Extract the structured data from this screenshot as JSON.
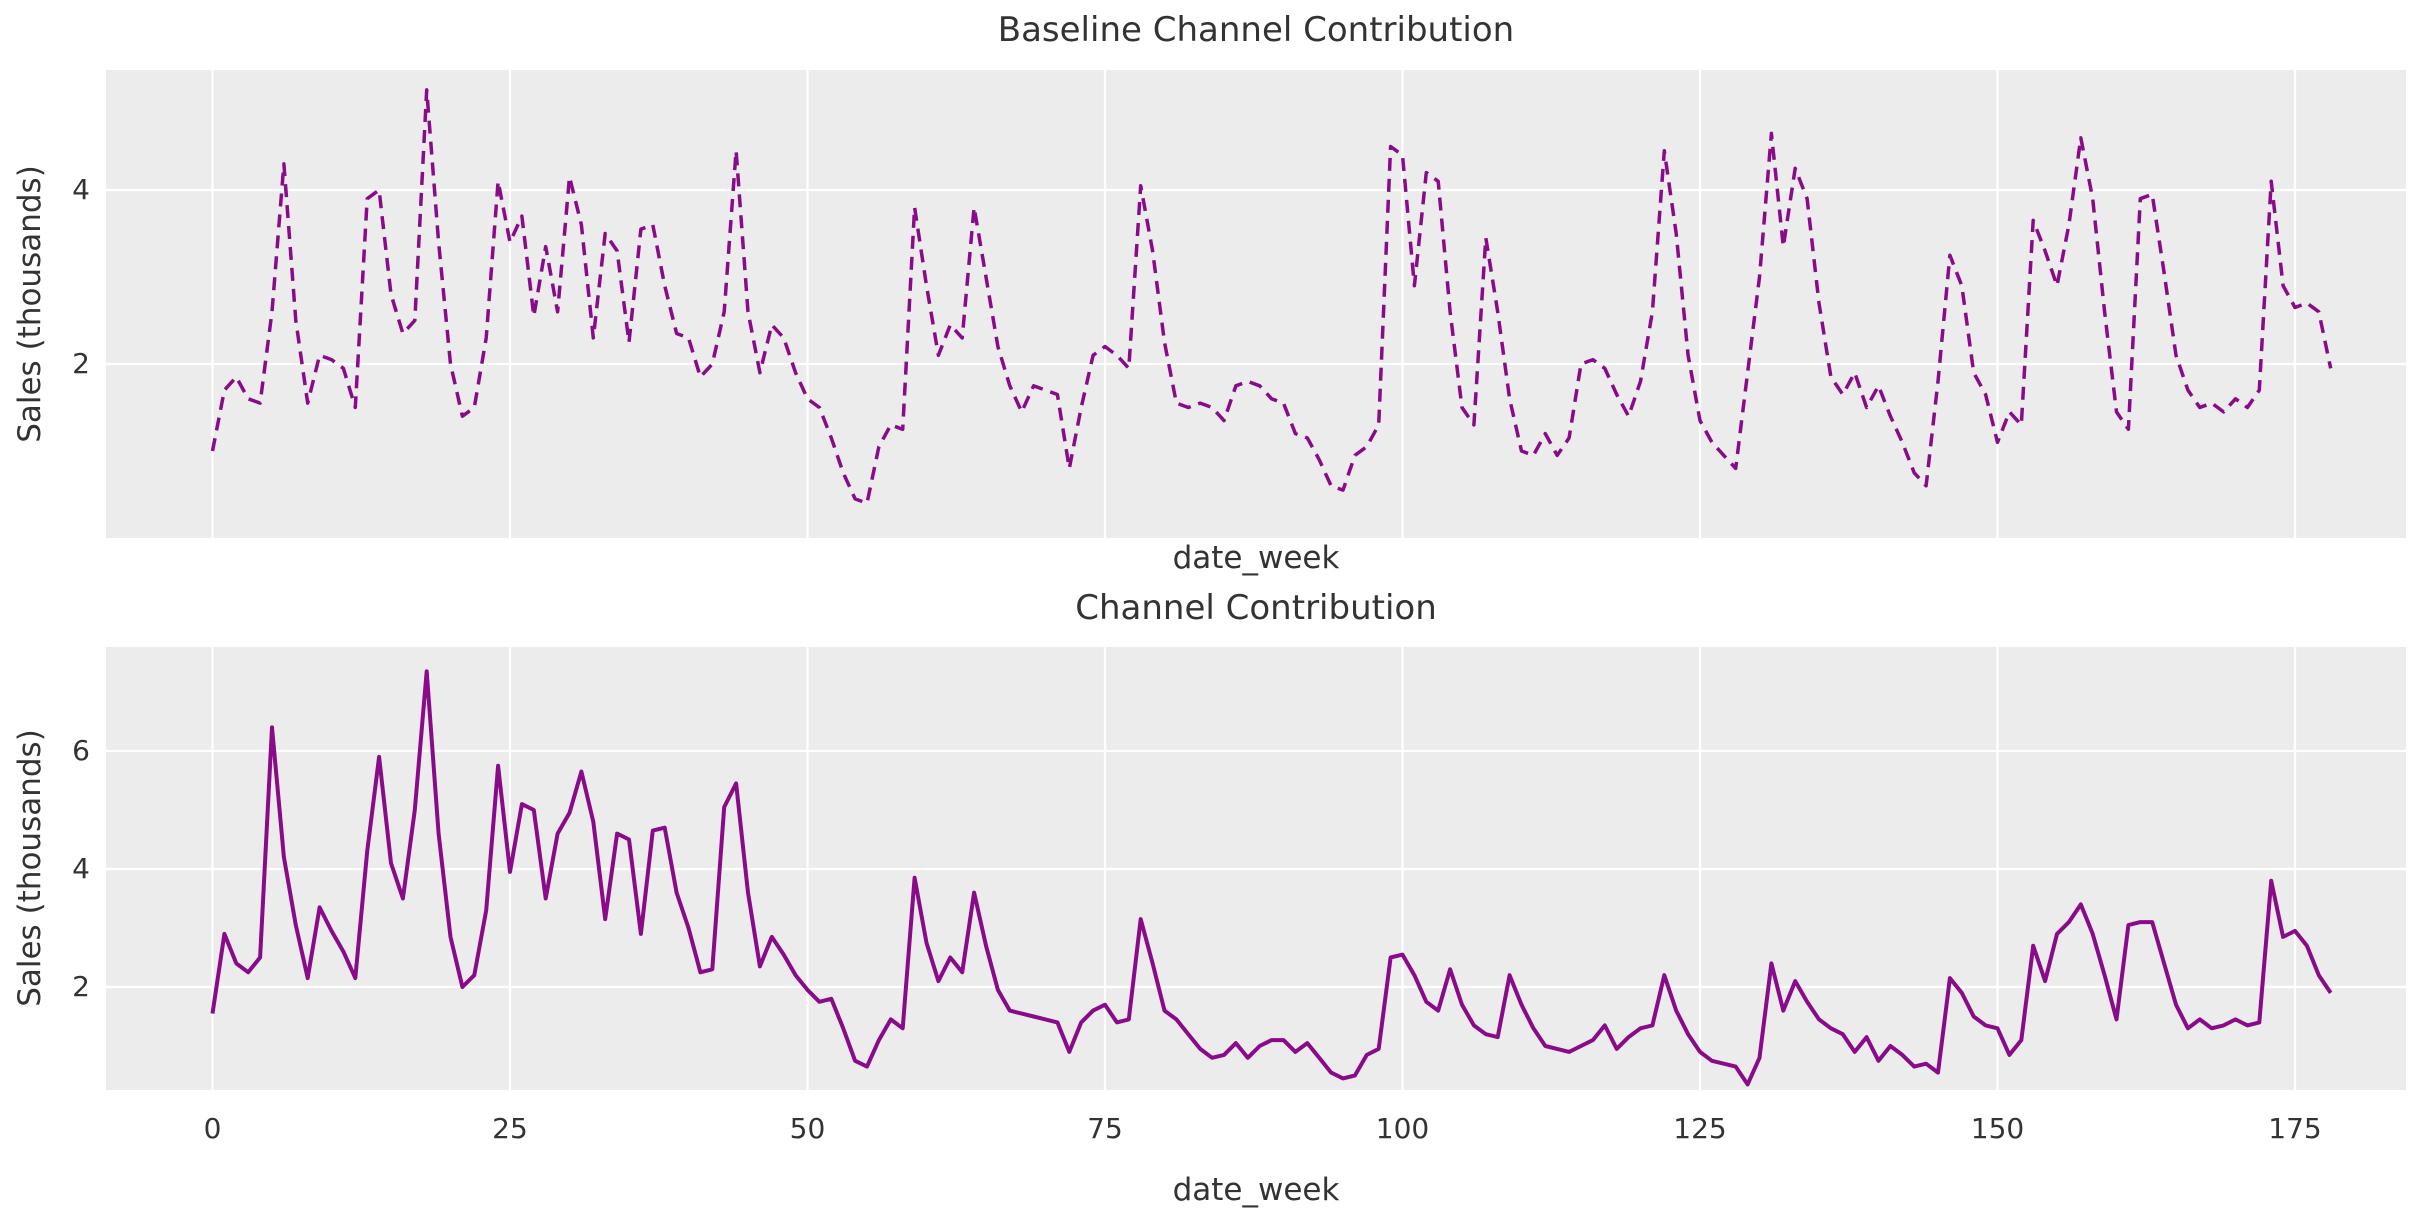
{
  "figure": {
    "background_color": "#ffffff",
    "axes_background_color": "#ececec",
    "gridline_color": "#ffffff",
    "text_color": "#333333",
    "line_color": "#8a0b8a"
  },
  "chart_data": [
    {
      "type": "line",
      "title": "Baseline Channel Contribution",
      "xlabel": "date_week",
      "ylabel": "Sales (thousands)",
      "line_style": "dashed",
      "line_color": "#8a0b8a",
      "grid": true,
      "legend": "none",
      "x_start": 0,
      "x_step": 1,
      "x_gridlines": [
        0,
        25,
        50,
        75,
        100,
        125,
        150,
        175
      ],
      "x_tick_labels_shown": false,
      "y_ticks": [
        2,
        4
      ],
      "ylim": [
        0.0,
        5.38
      ],
      "xlim": [
        -9,
        184.5
      ],
      "values": [
        1.0,
        1.7,
        1.85,
        1.6,
        1.55,
        2.6,
        4.3,
        2.5,
        1.55,
        2.1,
        2.05,
        1.95,
        1.5,
        3.9,
        4.0,
        2.8,
        2.35,
        2.5,
        5.15,
        3.4,
        2.0,
        1.4,
        1.5,
        2.3,
        4.1,
        3.4,
        3.7,
        2.55,
        3.35,
        2.6,
        4.15,
        3.6,
        2.3,
        3.5,
        3.3,
        2.25,
        3.55,
        3.6,
        2.9,
        2.35,
        2.3,
        1.85,
        2.0,
        2.6,
        4.45,
        2.6,
        1.9,
        2.45,
        2.3,
        1.9,
        1.6,
        1.5,
        1.15,
        0.75,
        0.45,
        0.4,
        1.05,
        1.3,
        1.25,
        3.8,
        2.9,
        2.1,
        2.45,
        2.3,
        3.8,
        3.0,
        2.2,
        1.75,
        1.45,
        1.75,
        1.7,
        1.65,
        0.8,
        1.5,
        2.1,
        2.2,
        2.1,
        1.95,
        4.05,
        3.3,
        2.25,
        1.55,
        1.5,
        1.55,
        1.5,
        1.35,
        1.75,
        1.8,
        1.75,
        1.6,
        1.55,
        1.2,
        1.15,
        0.9,
        0.6,
        0.55,
        0.95,
        1.05,
        1.3,
        4.5,
        4.4,
        2.9,
        4.2,
        4.1,
        2.6,
        1.5,
        1.3,
        3.45,
        2.6,
        1.6,
        1.0,
        0.95,
        1.2,
        0.95,
        1.15,
        2.0,
        2.05,
        1.95,
        1.65,
        1.4,
        1.8,
        2.6,
        4.45,
        3.5,
        2.1,
        1.35,
        1.1,
        0.95,
        0.8,
        1.9,
        3.0,
        4.65,
        3.35,
        4.25,
        3.9,
        2.7,
        1.85,
        1.65,
        1.9,
        1.5,
        1.75,
        1.4,
        1.1,
        0.75,
        0.6,
        1.8,
        3.25,
        2.9,
        1.9,
        1.65,
        1.1,
        1.45,
        1.3,
        3.65,
        3.3,
        2.9,
        3.6,
        4.6,
        3.9,
        2.6,
        1.45,
        1.25,
        3.9,
        3.95,
        3.05,
        2.1,
        1.7,
        1.5,
        1.55,
        1.45,
        1.6,
        1.5,
        1.7,
        4.1,
        2.9,
        2.65,
        2.7,
        2.6,
        1.95
      ]
    },
    {
      "type": "line",
      "title": "Channel Contribution",
      "xlabel": "date_week",
      "ylabel": "Sales (thousands)",
      "line_style": "solid",
      "line_color": "#8a0b8a",
      "grid": true,
      "legend": "none",
      "x_start": 0,
      "x_step": 1,
      "x_gridlines": [
        0,
        25,
        50,
        75,
        100,
        125,
        150,
        175
      ],
      "x_ticks": [
        0,
        25,
        50,
        75,
        100,
        125,
        150,
        175
      ],
      "x_tick_labels_shown": true,
      "y_ticks": [
        2,
        4,
        6
      ],
      "ylim": [
        0.25,
        7.76
      ],
      "xlim": [
        -9,
        184.5
      ],
      "values": [
        1.55,
        2.9,
        2.4,
        2.25,
        2.5,
        6.4,
        4.2,
        3.05,
        2.15,
        3.35,
        2.95,
        2.6,
        2.15,
        4.3,
        5.9,
        4.1,
        3.5,
        5.0,
        7.35,
        4.6,
        2.85,
        2.0,
        2.2,
        3.3,
        5.75,
        3.95,
        5.1,
        5.0,
        3.5,
        4.6,
        4.95,
        5.65,
        4.8,
        3.15,
        4.6,
        4.5,
        2.9,
        4.65,
        4.7,
        3.6,
        3.0,
        2.25,
        2.3,
        5.05,
        5.45,
        3.6,
        2.35,
        2.85,
        2.55,
        2.2,
        1.95,
        1.75,
        1.8,
        1.3,
        0.75,
        0.65,
        1.1,
        1.45,
        1.3,
        3.85,
        2.75,
        2.1,
        2.5,
        2.25,
        3.6,
        2.7,
        1.95,
        1.6,
        1.55,
        1.5,
        1.45,
        1.4,
        0.9,
        1.4,
        1.6,
        1.7,
        1.4,
        1.45,
        3.15,
        2.4,
        1.6,
        1.45,
        1.2,
        0.95,
        0.8,
        0.85,
        1.05,
        0.8,
        1.0,
        1.1,
        1.1,
        0.9,
        1.05,
        0.8,
        0.55,
        0.45,
        0.5,
        0.85,
        0.95,
        2.5,
        2.55,
        2.2,
        1.75,
        1.6,
        2.3,
        1.7,
        1.35,
        1.2,
        1.15,
        2.2,
        1.7,
        1.3,
        1.0,
        0.95,
        0.9,
        1.0,
        1.1,
        1.35,
        0.95,
        1.15,
        1.3,
        1.35,
        2.2,
        1.6,
        1.2,
        0.9,
        0.75,
        0.7,
        0.65,
        0.35,
        0.8,
        2.4,
        1.6,
        2.1,
        1.75,
        1.45,
        1.3,
        1.2,
        0.9,
        1.15,
        0.75,
        1.0,
        0.85,
        0.65,
        0.7,
        0.55,
        2.15,
        1.9,
        1.5,
        1.35,
        1.3,
        0.85,
        1.1,
        2.7,
        2.1,
        2.9,
        3.1,
        3.4,
        2.9,
        2.2,
        1.45,
        3.05,
        3.1,
        3.1,
        2.4,
        1.7,
        1.3,
        1.45,
        1.3,
        1.35,
        1.45,
        1.35,
        1.4,
        3.8,
        2.85,
        2.95,
        2.7,
        2.2,
        1.9
      ]
    }
  ]
}
